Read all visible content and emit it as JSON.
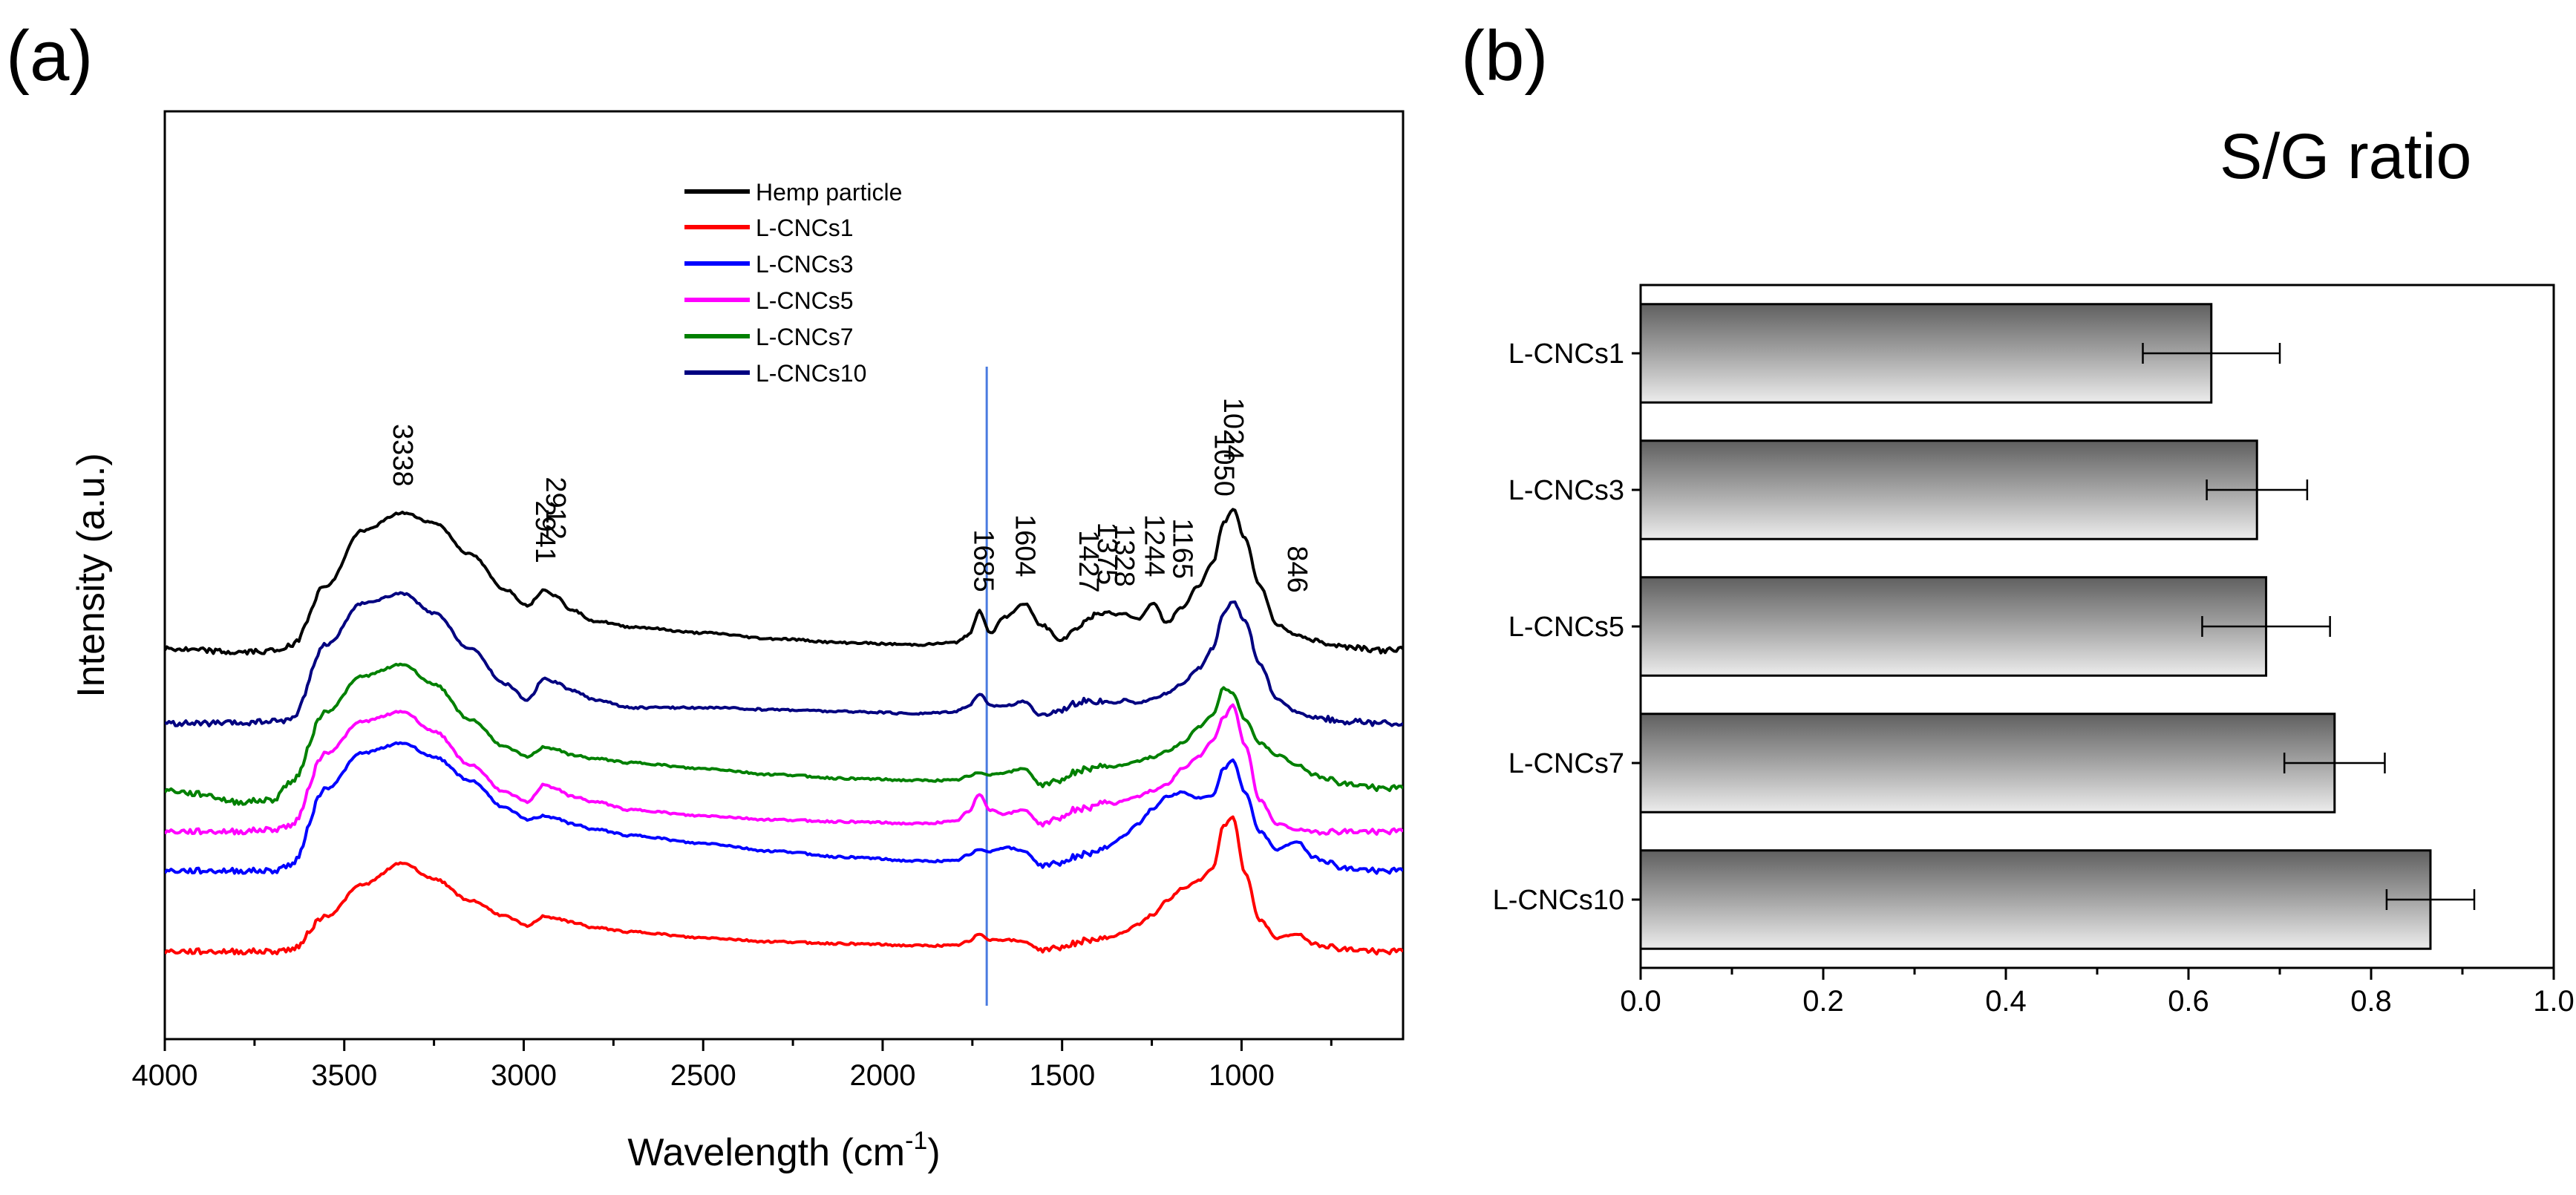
{
  "figure": {
    "panel_a_label": "(a)",
    "panel_b_label": "(b)"
  },
  "chart_data": [
    {
      "type": "line",
      "panel": "(a)",
      "title": "",
      "xlabel": "Wavelength (cm",
      "xlabel_sup": "-1",
      "xlabel_end": ")",
      "ylabel": "Intensity (a.u.)",
      "xlim": [
        4000,
        550
      ],
      "x_ticks": [
        4000,
        3500,
        3000,
        2500,
        2000,
        1500,
        1000
      ],
      "reference_line_x": 1710,
      "legend": [
        {
          "name": "Hemp particle",
          "color": "#000000"
        },
        {
          "name": "L-CNCs1",
          "color": "#ff0000"
        },
        {
          "name": "L-CNCs3",
          "color": "#0000ff"
        },
        {
          "name": "L-CNCs5",
          "color": "#ff00ff"
        },
        {
          "name": "L-CNCs7",
          "color": "#008000"
        },
        {
          "name": "L-CNCs10",
          "color": "#000080"
        }
      ],
      "peak_labels": [
        {
          "text": "3338",
          "x": 3338
        },
        {
          "text": "2941",
          "x": 2941
        },
        {
          "text": "2912",
          "x": 2912
        },
        {
          "text": "1685",
          "x": 1720
        },
        {
          "text": "1604",
          "x": 1604
        },
        {
          "text": "1427",
          "x": 1427
        },
        {
          "text": "1375",
          "x": 1375
        },
        {
          "text": "1328",
          "x": 1328
        },
        {
          "text": "1244",
          "x": 1244
        },
        {
          "text": "1165",
          "x": 1165
        },
        {
          "text": "1050",
          "x": 1050
        },
        {
          "text": "1024",
          "x": 1024
        },
        {
          "text": "846",
          "x": 846
        }
      ],
      "series": [
        {
          "name": "Hemp particle",
          "color": "#000000",
          "baseline": 7.7,
          "x": [
            4000,
            3900,
            3800,
            3700,
            3650,
            3550,
            3450,
            3338,
            3250,
            3150,
            3050,
            2990,
            2941,
            2912,
            2870,
            2800,
            2700,
            2500,
            2300,
            2100,
            1900,
            1800,
            1760,
            1730,
            1700,
            1660,
            1604,
            1560,
            1500,
            1470,
            1427,
            1400,
            1375,
            1350,
            1328,
            1290,
            1244,
            1210,
            1165,
            1120,
            1080,
            1050,
            1024,
            990,
            950,
            900,
            846,
            800,
            700,
            600,
            550
          ],
          "y": [
            0.0,
            -0.05,
            -0.1,
            -0.05,
            0.05,
            1.6,
            3.0,
            3.45,
            3.2,
            2.4,
            1.5,
            1.1,
            1.5,
            1.35,
            1.0,
            0.7,
            0.55,
            0.4,
            0.25,
            0.15,
            0.1,
            0.15,
            0.35,
            0.95,
            0.4,
            0.8,
            1.15,
            0.6,
            0.25,
            0.45,
            0.75,
            0.9,
            0.95,
            0.85,
            0.9,
            0.75,
            1.15,
            0.65,
            1.05,
            1.6,
            2.2,
            3.2,
            3.55,
            2.8,
            1.6,
            0.6,
            0.35,
            0.2,
            0.05,
            -0.05,
            0.0
          ]
        },
        {
          "name": "L-CNCs10",
          "color": "#000080",
          "baseline": 5.8,
          "x": [
            4000,
            3900,
            3800,
            3700,
            3650,
            3550,
            3450,
            3338,
            3250,
            3150,
            3050,
            2990,
            2941,
            2912,
            2870,
            2800,
            2700,
            2500,
            2300,
            2100,
            1900,
            1800,
            1760,
            1730,
            1700,
            1660,
            1604,
            1560,
            1500,
            1470,
            1427,
            1400,
            1375,
            1350,
            1328,
            1290,
            1244,
            1210,
            1165,
            1120,
            1080,
            1050,
            1024,
            990,
            950,
            900,
            846,
            800,
            700,
            600,
            550
          ],
          "y": [
            0.0,
            0.0,
            0.0,
            0.05,
            0.1,
            2.0,
            3.05,
            3.3,
            2.8,
            1.9,
            1.0,
            0.6,
            1.15,
            1.05,
            0.85,
            0.6,
            0.4,
            0.4,
            0.35,
            0.3,
            0.25,
            0.3,
            0.45,
            0.75,
            0.45,
            0.45,
            0.55,
            0.2,
            0.35,
            0.5,
            0.6,
            0.55,
            0.55,
            0.5,
            0.6,
            0.5,
            0.65,
            0.75,
            1.0,
            1.4,
            1.9,
            2.8,
            3.1,
            2.6,
            1.5,
            0.6,
            0.3,
            0.15,
            0.05,
            0.0,
            0.0
          ]
        },
        {
          "name": "L-CNCs7",
          "color": "#008000",
          "baseline": 4.1,
          "x": [
            4000,
            3900,
            3800,
            3700,
            3650,
            3550,
            3450,
            3338,
            3250,
            3150,
            3050,
            2990,
            2941,
            2912,
            2870,
            2800,
            2700,
            2500,
            2300,
            2100,
            1900,
            1800,
            1760,
            1730,
            1700,
            1660,
            1604,
            1560,
            1500,
            1470,
            1427,
            1400,
            1375,
            1350,
            1328,
            1290,
            1244,
            1210,
            1165,
            1120,
            1080,
            1050,
            1024,
            990,
            950,
            900,
            846,
            800,
            700,
            600,
            550
          ],
          "y": [
            0.0,
            -0.1,
            -0.3,
            -0.25,
            0.2,
            2.0,
            2.9,
            3.2,
            2.7,
            1.8,
            1.1,
            0.85,
            1.1,
            1.05,
            0.9,
            0.8,
            0.7,
            0.55,
            0.4,
            0.3,
            0.25,
            0.25,
            0.35,
            0.45,
            0.4,
            0.45,
            0.55,
            0.15,
            0.25,
            0.45,
            0.55,
            0.6,
            0.6,
            0.6,
            0.65,
            0.75,
            0.85,
            1.0,
            1.2,
            1.6,
            1.9,
            2.6,
            2.45,
            1.8,
            1.2,
            0.9,
            0.65,
            0.4,
            0.15,
            0.05,
            0.05
          ]
        },
        {
          "name": "L-CNCs5",
          "color": "#ff00ff",
          "baseline": 3.05,
          "x": [
            4000,
            3900,
            3800,
            3700,
            3650,
            3550,
            3450,
            3338,
            3250,
            3150,
            3050,
            2990,
            2941,
            2912,
            2870,
            2800,
            2700,
            2500,
            2300,
            2100,
            1900,
            1800,
            1760,
            1730,
            1700,
            1660,
            1604,
            1560,
            1500,
            1470,
            1427,
            1400,
            1375,
            1350,
            1328,
            1290,
            1244,
            1210,
            1165,
            1120,
            1080,
            1050,
            1024,
            990,
            950,
            900,
            846,
            800,
            700,
            600,
            550
          ],
          "y": [
            0.0,
            0.0,
            0.0,
            0.05,
            0.15,
            2.0,
            2.8,
            3.05,
            2.55,
            1.7,
            1.0,
            0.75,
            1.2,
            1.1,
            0.9,
            0.75,
            0.55,
            0.4,
            0.3,
            0.25,
            0.2,
            0.25,
            0.5,
            0.95,
            0.55,
            0.45,
            0.55,
            0.2,
            0.35,
            0.55,
            0.6,
            0.7,
            0.75,
            0.7,
            0.8,
            0.9,
            1.05,
            1.2,
            1.6,
            1.9,
            2.3,
            2.9,
            3.2,
            2.2,
            0.8,
            0.2,
            0.05,
            0.0,
            0.0,
            0.0,
            0.0
          ]
        },
        {
          "name": "L-CNCs3",
          "color": "#0000ff",
          "baseline": 2.05,
          "x": [
            4000,
            3900,
            3800,
            3700,
            3650,
            3550,
            3450,
            3338,
            3250,
            3150,
            3050,
            2990,
            2941,
            2912,
            2870,
            2800,
            2700,
            2500,
            2300,
            2100,
            1900,
            1800,
            1760,
            1730,
            1700,
            1660,
            1604,
            1560,
            1500,
            1470,
            1427,
            1400,
            1375,
            1350,
            1328,
            1290,
            1244,
            1210,
            1165,
            1120,
            1080,
            1050,
            1024,
            990,
            950,
            900,
            846,
            800,
            700,
            600,
            550
          ],
          "y": [
            0.0,
            0.0,
            0.0,
            0.0,
            0.15,
            2.1,
            3.0,
            3.25,
            2.9,
            2.3,
            1.6,
            1.3,
            1.4,
            1.35,
            1.2,
            1.05,
            0.9,
            0.7,
            0.5,
            0.35,
            0.25,
            0.25,
            0.4,
            0.55,
            0.5,
            0.6,
            0.5,
            0.15,
            0.2,
            0.35,
            0.45,
            0.5,
            0.6,
            0.75,
            0.9,
            1.2,
            1.6,
            1.9,
            2.0,
            1.85,
            1.9,
            2.6,
            2.8,
            2.0,
            1.0,
            0.55,
            0.75,
            0.35,
            0.05,
            0.0,
            0.0
          ]
        },
        {
          "name": "L-CNCs1",
          "color": "#ff0000",
          "baseline": 0.0,
          "x": [
            4000,
            3900,
            3800,
            3700,
            3650,
            3550,
            3450,
            3338,
            3250,
            3150,
            3050,
            2990,
            2941,
            2912,
            2870,
            2800,
            2700,
            2500,
            2300,
            2100,
            1900,
            1800,
            1760,
            1730,
            1700,
            1660,
            1604,
            1560,
            1500,
            1470,
            1427,
            1400,
            1375,
            1350,
            1328,
            1290,
            1244,
            1210,
            1165,
            1120,
            1080,
            1050,
            1024,
            990,
            950,
            900,
            846,
            800,
            700,
            600,
            550
          ],
          "y": [
            0.0,
            0.0,
            0.0,
            0.0,
            0.05,
            0.9,
            1.7,
            2.25,
            1.85,
            1.3,
            0.9,
            0.65,
            0.9,
            0.85,
            0.75,
            0.6,
            0.5,
            0.35,
            0.25,
            0.2,
            0.15,
            0.15,
            0.25,
            0.45,
            0.3,
            0.3,
            0.25,
            0.05,
            0.1,
            0.2,
            0.3,
            0.3,
            0.35,
            0.4,
            0.5,
            0.7,
            0.95,
            1.3,
            1.6,
            1.8,
            2.1,
            3.2,
            3.4,
            2.0,
            0.8,
            0.35,
            0.45,
            0.2,
            0.05,
            0.0,
            0.0
          ]
        }
      ]
    },
    {
      "type": "bar",
      "orientation": "horizontal",
      "panel": "(b)",
      "title": "S/G ratio",
      "categories": [
        "L-CNCs1",
        "L-CNCs3",
        "L-CNCs5",
        "L-CNCs7",
        "L-CNCs10"
      ],
      "values": [
        0.625,
        0.675,
        0.685,
        0.76,
        0.865
      ],
      "errors": [
        0.075,
        0.055,
        0.07,
        0.055,
        0.048
      ],
      "xlim": [
        0.0,
        1.0
      ],
      "x_ticks": [
        "0.0",
        "0.2",
        "0.4",
        "0.6",
        "0.8",
        "1.0"
      ],
      "xlabel": "",
      "ylabel": ""
    }
  ]
}
